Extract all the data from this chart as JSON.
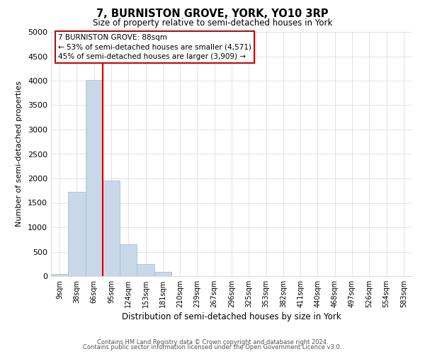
{
  "title": "7, BURNISTON GROVE, YORK, YO10 3RP",
  "subtitle": "Size of property relative to semi-detached houses in York",
  "xlabel": "Distribution of semi-detached houses by size in York",
  "ylabel": "Number of semi-detached properties",
  "bar_labels": [
    "9sqm",
    "38sqm",
    "66sqm",
    "95sqm",
    "124sqm",
    "153sqm",
    "181sqm",
    "210sqm",
    "239sqm",
    "267sqm",
    "296sqm",
    "325sqm",
    "353sqm",
    "382sqm",
    "411sqm",
    "440sqm",
    "468sqm",
    "497sqm",
    "526sqm",
    "554sqm",
    "583sqm"
  ],
  "bar_values": [
    50,
    1730,
    4020,
    1950,
    650,
    250,
    90,
    0,
    0,
    0,
    0,
    0,
    0,
    0,
    0,
    0,
    0,
    0,
    0,
    0,
    0
  ],
  "bar_color": "#c8d8e8",
  "bar_edge_color": "#a0b8d0",
  "ylim": [
    0,
    5000
  ],
  "yticks": [
    0,
    500,
    1000,
    1500,
    2000,
    2500,
    3000,
    3500,
    4000,
    4500,
    5000
  ],
  "property_line_x": 3.0,
  "property_line_color": "#cc0000",
  "annotation_title": "7 BURNISTON GROVE: 88sqm",
  "annotation_line1": "← 53% of semi-detached houses are smaller (4,571)",
  "annotation_line2": "45% of semi-detached houses are larger (3,909) →",
  "annotation_box_color": "#ffffff",
  "annotation_box_edge": "#cc0000",
  "footer_line1": "Contains HM Land Registry data © Crown copyright and database right 2024.",
  "footer_line2": "Contains public sector information licensed under the Open Government Licence v3.0.",
  "background_color": "#ffffff",
  "grid_color": "#d0d8e0"
}
